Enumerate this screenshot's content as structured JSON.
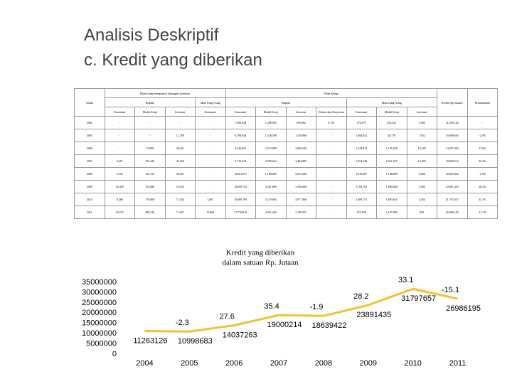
{
  "header": {
    "title": "Analisis Deskriptif",
    "subtitle": "c. Kredit yang diberikan"
  },
  "table": {
    "year_header": "Tahun",
    "group_headers": [
      "Pihak yang mempunyai hubungan istimewa",
      "Pihak Ketiga"
    ],
    "currency_headers": [
      "Rupiah",
      "Mata Uang Asing",
      "Rupiah",
      "Mata Uang Asing"
    ],
    "kredit_header": "Kredit (Rp Jutaan)",
    "growth_header": "Pertumbuhan",
    "column_headers": [
      "Konsumsi",
      "Modal Kerja",
      "Investasi",
      "Konsumsi",
      "Konsumsi",
      "Modal Kerja",
      "Investasi",
      "Direksi dan Karyawan",
      "Konsumsi",
      "Modal Kerja",
      "Investasi"
    ],
    "rows": [
      [
        "2004",
        "-",
        "-",
        "-",
        "-",
        "7,508,448",
        "1,588,685",
        "818,882",
        "6,729",
        "476,075",
        "253,241",
        "5,406",
        "11,263,126",
        "-"
      ],
      [
        "2005",
        "-",
        "-",
        "12,789",
        "-",
        "6,798,844",
        "1,548,598",
        "1,518,880",
        "-",
        "1,084,842",
        "28,778",
        "7,952",
        "10,998,683",
        "-2.3%"
      ],
      [
        "2006",
        "-",
        "75,000",
        "38,421",
        "-",
        "8,320,961",
        "2,513,809",
        "2,069,545",
        "-",
        "1,338,815",
        "1,105,538",
        "10,185",
        "14,037,263",
        "27.6%"
      ],
      [
        "2007",
        "8,401",
        "152,426",
        "47,630",
        "-",
        "9,710,041",
        "3,599,664",
        "3,494,883",
        "-",
        "1,054,348",
        "1,611,627",
        "15,805",
        "19,000,214",
        "35.4%"
      ],
      [
        "2008",
        "4,555",
        "162,152",
        "38,667",
        "-",
        "12,601,057",
        "1,188,899",
        "5,014,580",
        "-",
        "1,019,607",
        "1,188,899",
        "6,006",
        "18,639,422",
        "-1.9%"
      ],
      [
        "2009",
        "18,418",
        "152,886",
        "53,045",
        "-",
        "14,099,745",
        "3,521,896",
        "3,356,606",
        "-",
        "1,709,781",
        "1,869,000",
        "5,496",
        "23,891,435",
        "28.2%"
      ],
      [
        "2010",
        "9,386",
        "176,809",
        "71,045",
        "1,067",
        "19,869,789",
        "5,119,904",
        "4,977,968",
        "-",
        "1,409,751",
        "1,893,610",
        "4,764",
        "31,797,657",
        "33.1%"
      ],
      [
        "2011",
        "10,767",
        "288,542",
        "71,967",
        "15,864",
        "17,779,816",
        "4,911,340",
        "2,199,927",
        "-",
        "875,959",
        "1,107,890",
        "959",
        "26,986,195",
        "-15.1%"
      ]
    ]
  },
  "chart_data": {
    "type": "line",
    "title": "Kredit yang diberikan",
    "subtitle": "dalam satuan Rp. Jutaan",
    "categories": [
      "2004",
      "2005",
      "2006",
      "2007",
      "2008",
      "2009",
      "2010",
      "2011"
    ],
    "values": [
      11263126,
      10998683,
      14037263,
      19000214,
      18639422,
      23891435,
      31797657,
      26986195
    ],
    "annotations": [
      null,
      "-2.3",
      "27.6",
      "35.4",
      "-1.9",
      "28.2",
      "33.1",
      "-15.1"
    ],
    "color": "#f2c232",
    "ylim": [
      0,
      35000000
    ],
    "yticks": [
      0,
      5000000,
      10000000,
      15000000,
      20000000,
      25000000,
      30000000,
      35000000
    ]
  }
}
